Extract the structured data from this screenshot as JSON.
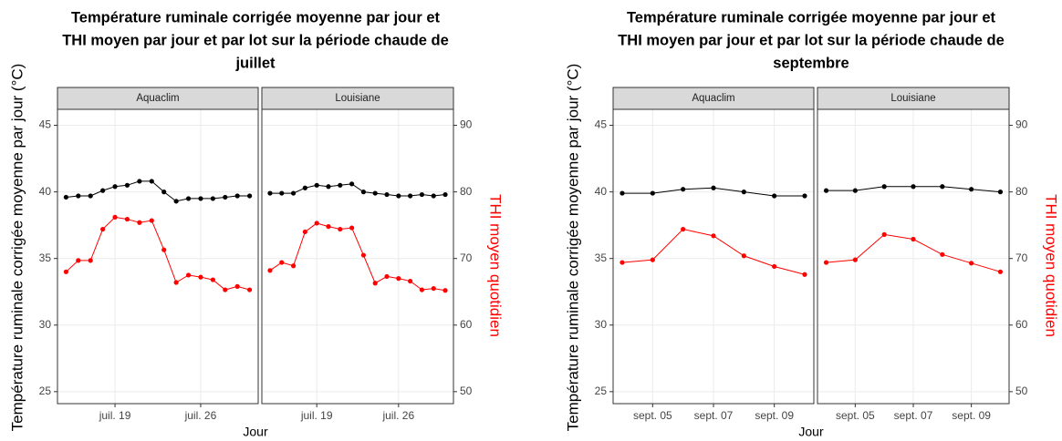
{
  "chart_data": [
    {
      "type": "line",
      "title": [
        "Température ruminale corrigée moyenne par jour et",
        "THI moyen par jour et par lot sur la période chaude de",
        "juillet"
      ],
      "ylabel": "Température ruminale corrigée moyenne par jour (°C)",
      "y2label": "THI moyen quotidien",
      "xlabel": "Jour",
      "xlim": [
        14.3,
        30.7
      ],
      "xticks": [
        {
          "value": 19,
          "label": "juil. 19"
        },
        {
          "value": 26,
          "label": "juil. 26"
        }
      ],
      "ylim": [
        24.1,
        46.2
      ],
      "yticks": [
        25,
        30,
        35,
        40,
        45
      ],
      "y2lim": [
        48.2,
        92.4
      ],
      "y2ticks": [
        50,
        60,
        70,
        80,
        90
      ],
      "grid": true,
      "facets": [
        {
          "name": "Aquaclim",
          "x": [
            15,
            16,
            17,
            18,
            19,
            20,
            21,
            22,
            23,
            24,
            25,
            26,
            27,
            28,
            29,
            30
          ],
          "series": [
            {
              "color": "#000000",
              "axis": "y",
              "values": [
                39.6,
                39.7,
                39.7,
                40.1,
                40.4,
                40.5,
                40.8,
                40.8,
                40.0,
                39.3,
                39.5,
                39.5,
                39.5,
                39.6,
                39.7,
                39.7
              ]
            },
            {
              "color": "#ff0000",
              "axis": "y2",
              "values": [
                68.0,
                69.7,
                69.7,
                74.4,
                76.2,
                75.9,
                75.4,
                75.7,
                71.3,
                66.4,
                67.5,
                67.2,
                66.8,
                65.3,
                65.8,
                65.3
              ]
            }
          ]
        },
        {
          "name": "Louisiane",
          "x": [
            15,
            16,
            17,
            18,
            19,
            20,
            21,
            22,
            23,
            24,
            25,
            26,
            27,
            28,
            29,
            30
          ],
          "series": [
            {
              "color": "#000000",
              "axis": "y",
              "values": [
                39.9,
                39.9,
                39.9,
                40.3,
                40.5,
                40.4,
                40.5,
                40.6,
                40.0,
                39.9,
                39.8,
                39.7,
                39.7,
                39.8,
                39.7,
                39.8
              ]
            },
            {
              "color": "#ff0000",
              "axis": "y2",
              "values": [
                68.2,
                69.4,
                68.9,
                74.0,
                75.3,
                74.8,
                74.4,
                74.6,
                70.5,
                66.3,
                67.3,
                67.0,
                66.6,
                65.3,
                65.5,
                65.2
              ]
            }
          ]
        }
      ]
    },
    {
      "type": "line",
      "title": [
        "Température ruminale corrigée moyenne par jour et",
        "THI moyen par jour et par lot sur la période chaude de",
        "septembre"
      ],
      "ylabel": "Température ruminale corrigée moyenne par jour (°C)",
      "y2label": "THI moyen quotidien",
      "xlabel": "Jour",
      "xlim": [
        3.7,
        10.3
      ],
      "xticks": [
        {
          "value": 5,
          "label": "sept. 05"
        },
        {
          "value": 7,
          "label": "sept. 07"
        },
        {
          "value": 9,
          "label": "sept. 09"
        }
      ],
      "ylim": [
        24.1,
        46.2
      ],
      "yticks": [
        25,
        30,
        35,
        40,
        45
      ],
      "y2lim": [
        48.2,
        92.4
      ],
      "y2ticks": [
        50,
        60,
        70,
        80,
        90
      ],
      "grid": true,
      "facets": [
        {
          "name": "Aquaclim",
          "x": [
            4,
            5,
            6,
            7,
            8,
            9,
            10
          ],
          "series": [
            {
              "color": "#000000",
              "axis": "y",
              "values": [
                39.9,
                39.9,
                40.2,
                40.3,
                40.0,
                39.7,
                39.7
              ]
            },
            {
              "color": "#ff0000",
              "axis": "y2",
              "values": [
                69.4,
                69.8,
                74.4,
                73.4,
                70.4,
                68.8,
                67.6
              ]
            }
          ]
        },
        {
          "name": "Louisiane",
          "x": [
            4,
            5,
            6,
            7,
            8,
            9,
            10
          ],
          "series": [
            {
              "color": "#000000",
              "axis": "y",
              "values": [
                40.1,
                40.1,
                40.4,
                40.4,
                40.4,
                40.2,
                40.0
              ]
            },
            {
              "color": "#ff0000",
              "axis": "y2",
              "values": [
                69.4,
                69.8,
                73.6,
                72.9,
                70.6,
                69.3,
                68.0
              ]
            }
          ]
        }
      ]
    }
  ]
}
